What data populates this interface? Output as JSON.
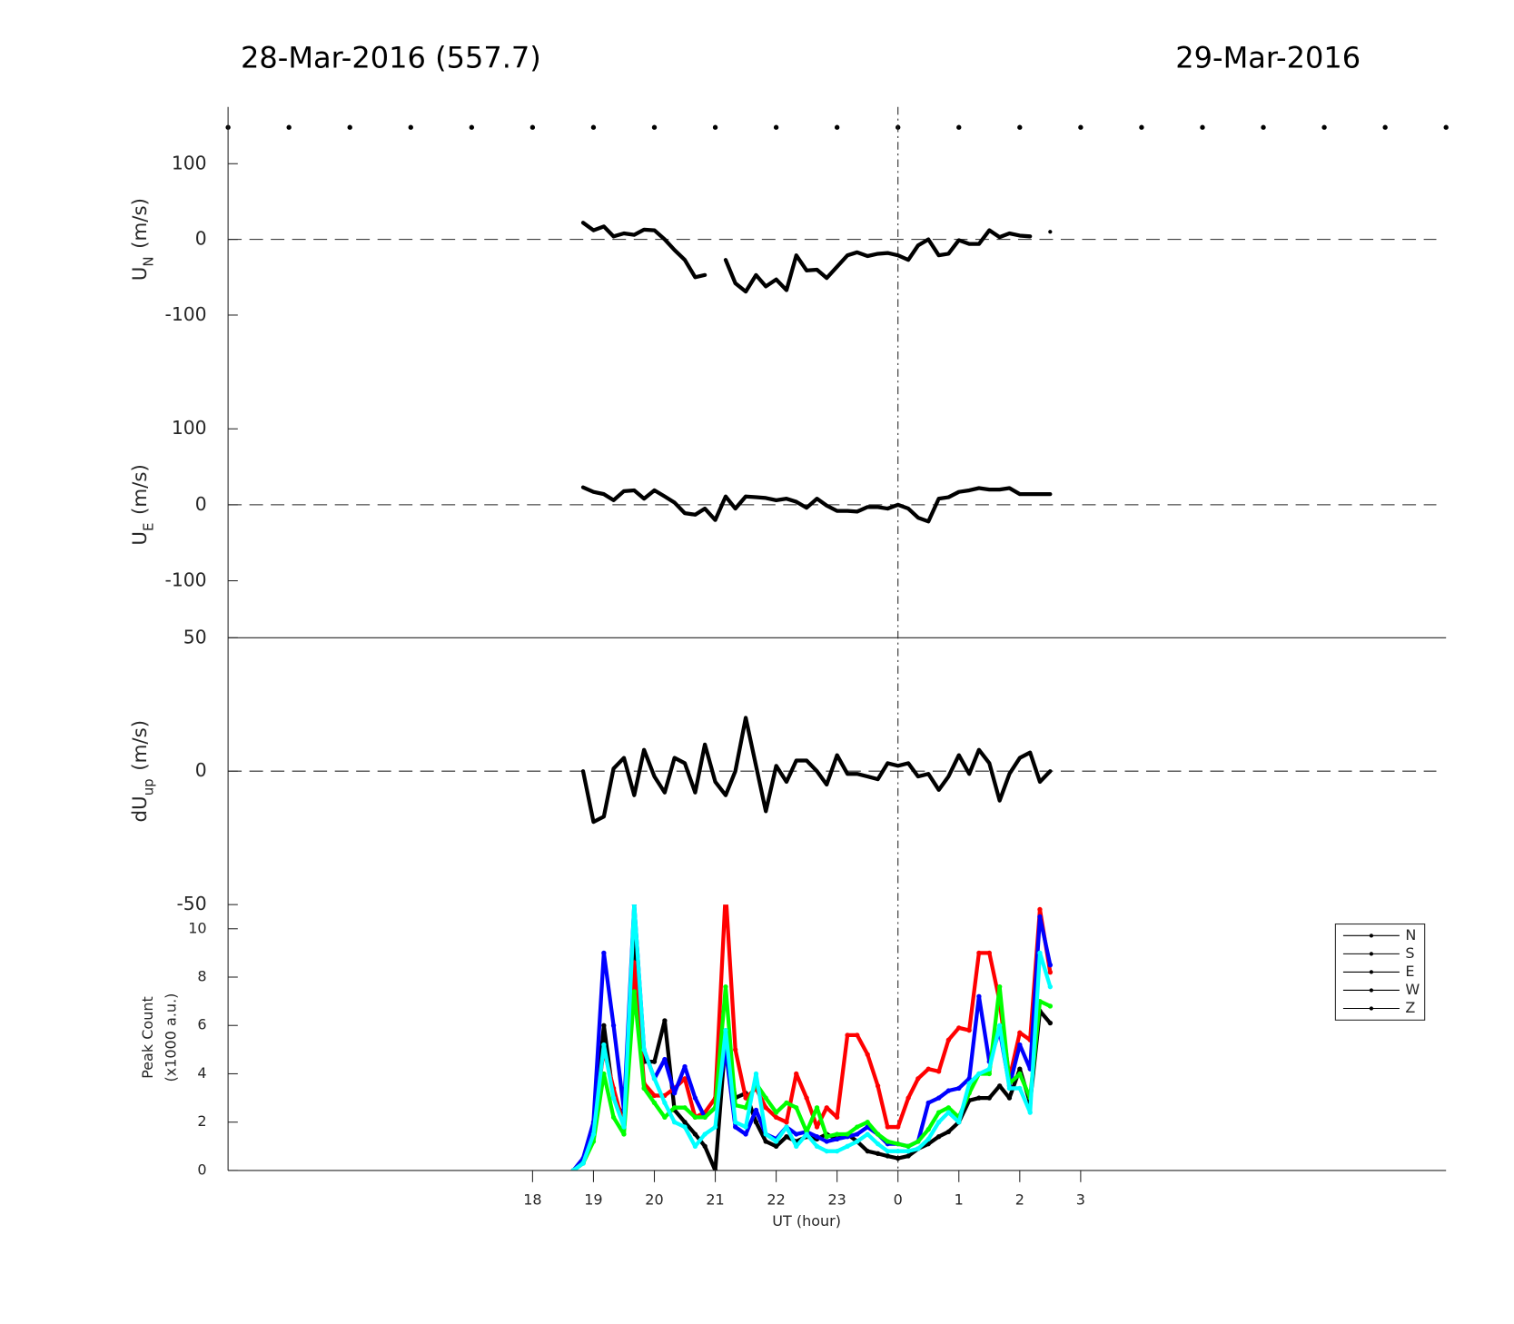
{
  "header": {
    "left": "28-Mar-2016 (557.7)",
    "right": "29-Mar-2016"
  },
  "chart_data": [
    {
      "type": "line",
      "ylabel": {
        "text": "U",
        "sub": "N",
        "unit": "(m/s)"
      },
      "ylim": [
        -175,
        175
      ],
      "yticks": [
        -100,
        0,
        100
      ],
      "color": "#000000",
      "x": [
        -5.17,
        -5,
        -4.83,
        -4.67,
        -4.5,
        -4.33,
        -4.17,
        -4,
        -3.83,
        -3.67,
        -3.5,
        -3.33,
        -3.17,
        -3,
        -2.83,
        -2.67,
        -2.5,
        -2.33,
        -2.17,
        -2,
        -1.83,
        -1.67,
        -1.5,
        -1.33,
        -1.17,
        -1,
        -0.83,
        -0.67,
        -0.5,
        -0.33,
        -0.17,
        0,
        0.17,
        0.33,
        0.5,
        0.67,
        0.83,
        1,
        1.17,
        1.33,
        1.5,
        1.67,
        1.83,
        2,
        2.17,
        2.33,
        2.5
      ],
      "values": [
        22,
        12,
        17,
        4,
        8,
        6,
        13,
        12,
        0,
        -14,
        -27,
        -50,
        -47,
        null,
        -27,
        -58,
        -69,
        -47,
        -62,
        -53,
        -67,
        -21,
        -41,
        -40,
        -51,
        -36,
        -21,
        -17,
        -22,
        -19,
        -18,
        -21,
        -27,
        -8,
        0,
        -21,
        -19,
        -1,
        -6,
        -6,
        12,
        3,
        8,
        5,
        4,
        null,
        10
      ]
    },
    {
      "type": "line",
      "ylabel": {
        "text": "U",
        "sub": "E",
        "unit": "(m/s)"
      },
      "ylim": [
        -175,
        175
      ],
      "yticks": [
        -100,
        0,
        100
      ],
      "color": "#000000",
      "x": [
        -5.17,
        -5,
        -4.83,
        -4.67,
        -4.5,
        -4.33,
        -4.17,
        -4,
        -3.83,
        -3.67,
        -3.5,
        -3.33,
        -3.17,
        -3,
        -2.83,
        -2.67,
        -2.5,
        -2.33,
        -2.17,
        -2,
        -1.83,
        -1.67,
        -1.5,
        -1.33,
        -1.17,
        -1,
        -0.83,
        -0.67,
        -0.5,
        -0.33,
        -0.17,
        0,
        0.17,
        0.33,
        0.5,
        0.67,
        0.83,
        1,
        1.17,
        1.33,
        1.5,
        1.67,
        1.83,
        2,
        2.17,
        2.33,
        2.5
      ],
      "values": [
        23,
        17,
        14,
        6,
        18,
        19,
        8,
        19,
        11,
        3,
        -11,
        -13,
        -5,
        -20,
        11,
        -5,
        11,
        10,
        9,
        6,
        8,
        4,
        -4,
        8,
        -1,
        -8,
        -8,
        -9,
        -3,
        -3,
        -5,
        0,
        -5,
        -17,
        -22,
        8,
        10,
        17,
        19,
        22,
        20,
        20,
        22,
        14,
        14,
        14,
        14
      ]
    },
    {
      "type": "line",
      "ylabel": {
        "text": "dU",
        "sub": "up",
        "unit": "(m/s)"
      },
      "ylim": [
        -50,
        50
      ],
      "yticks": [
        -50,
        0,
        50
      ],
      "color": "#000000",
      "x": [
        -5.17,
        -5,
        -4.83,
        -4.67,
        -4.5,
        -4.33,
        -4.17,
        -4,
        -3.83,
        -3.67,
        -3.5,
        -3.33,
        -3.17,
        -3,
        -2.83,
        -2.67,
        -2.5,
        -2.33,
        -2.17,
        -2,
        -1.83,
        -1.67,
        -1.5,
        -1.33,
        -1.17,
        -1,
        -0.83,
        -0.67,
        -0.5,
        -0.33,
        -0.17,
        0,
        0.17,
        0.33,
        0.5,
        0.67,
        0.83,
        1,
        1.17,
        1.33,
        1.5,
        1.67,
        1.83,
        2,
        2.17,
        2.33,
        2.5
      ],
      "values": [
        0,
        -19,
        -17,
        1,
        5,
        -9,
        8,
        -2,
        -8,
        5,
        3,
        -8,
        10,
        -4,
        -9,
        0,
        20,
        2,
        -15,
        2,
        -4,
        4,
        4,
        0,
        -5,
        6,
        -1,
        -1,
        -2,
        -3,
        3,
        2,
        3,
        -2,
        -1,
        -7,
        -2,
        6,
        -1,
        8,
        3,
        -11,
        -1,
        5,
        7,
        -4,
        0
      ]
    },
    {
      "type": "line",
      "ylabel": [
        "Peak Count",
        "(x1000 a.u.)"
      ],
      "ylim": [
        0,
        11
      ],
      "yticks": [
        0,
        2,
        4,
        6,
        8,
        10
      ],
      "xlabel": "UT (hour)",
      "xlim": [
        -11,
        9
      ],
      "xticks": [
        {
          "value": -6,
          "label": "18"
        },
        {
          "value": -5,
          "label": "19"
        },
        {
          "value": -4,
          "label": "20"
        },
        {
          "value": -3,
          "label": "21"
        },
        {
          "value": -2,
          "label": "22"
        },
        {
          "value": -1,
          "label": "23"
        },
        0,
        1,
        2,
        3
      ],
      "legend": "right",
      "legend_color": "#000000",
      "x": [
        -5.33,
        -5.17,
        -5,
        -4.83,
        -4.67,
        -4.5,
        -4.33,
        -4.17,
        -4,
        -3.83,
        -3.67,
        -3.5,
        -3.33,
        -3.17,
        -3,
        -2.83,
        -2.67,
        -2.5,
        -2.33,
        -2.17,
        -2,
        -1.83,
        -1.67,
        -1.5,
        -1.33,
        -1.17,
        -1,
        -0.83,
        -0.67,
        -0.5,
        -0.33,
        -0.17,
        0,
        0.17,
        0.33,
        0.5,
        0.67,
        0.83,
        1,
        1.17,
        1.33,
        1.5,
        1.67,
        1.83,
        2,
        2.17,
        2.33,
        2.5
      ],
      "series": [
        {
          "name": "N",
          "color": "#000000",
          "values": [
            0,
            0.3,
            1.5,
            6,
            3,
            2.2,
            10,
            4.5,
            4.5,
            6.2,
            2.5,
            2,
            1.5,
            1,
            0,
            5.5,
            3,
            3.2,
            2,
            1.2,
            1,
            1.4,
            1.2,
            1.4,
            1.3,
            1.5,
            1.3,
            1.5,
            1.2,
            0.8,
            0.7,
            0.6,
            0.5,
            0.6,
            0.9,
            1.1,
            1.4,
            1.6,
            2,
            2.9,
            3,
            3,
            3.5,
            3,
            4.2,
            2.8,
            6.6,
            6.1
          ]
        },
        {
          "name": "S",
          "color": "#ff0000",
          "values": [
            0,
            0.4,
            1.8,
            5,
            3.4,
            1.8,
            8.6,
            3.6,
            3.1,
            3.1,
            3.4,
            3.8,
            2.2,
            2.4,
            3,
            11.5,
            5,
            3,
            3.4,
            2.6,
            2.2,
            2,
            4,
            3,
            1.8,
            2.6,
            2.2,
            5.6,
            5.6,
            4.8,
            3.5,
            1.8,
            1.8,
            3,
            3.8,
            4.2,
            4.1,
            5.4,
            5.9,
            5.8,
            9,
            9,
            7,
            3.8,
            5.7,
            5.4,
            10.8,
            8.2
          ]
        },
        {
          "name": "E",
          "color": "#0000ff",
          "values": [
            0,
            0.5,
            2,
            9,
            6,
            2.5,
            11,
            5,
            3.8,
            4.6,
            3.2,
            4.3,
            3,
            2.2,
            2.6,
            5,
            1.8,
            1.5,
            2.5,
            1.5,
            1.3,
            1.8,
            1.5,
            1.6,
            1.4,
            1.2,
            1.3,
            1.4,
            1.5,
            1.8,
            1.5,
            1.1,
            1.1,
            1,
            1.2,
            2.8,
            3,
            3.3,
            3.4,
            3.8,
            7.2,
            4.5,
            5.8,
            3.5,
            5.2,
            4.2,
            10.5,
            8.5
          ]
        },
        {
          "name": "W",
          "color": "#00ff00",
          "values": [
            0,
            0.3,
            1.2,
            4,
            2.2,
            1.5,
            7.4,
            3.4,
            2.8,
            2.2,
            2.6,
            2.6,
            2.2,
            2.2,
            2.6,
            7.6,
            2.7,
            2.6,
            3.6,
            3,
            2.4,
            2.8,
            2.6,
            1.6,
            2.6,
            1.4,
            1.5,
            1.5,
            1.8,
            2,
            1.5,
            1.2,
            1.1,
            1,
            1.2,
            1.7,
            2.4,
            2.6,
            2.2,
            3.2,
            4,
            4,
            7.6,
            3.6,
            4,
            3,
            7,
            6.8
          ]
        },
        {
          "name": "Z",
          "color": "#00ffff",
          "values": [
            0,
            0.3,
            1.5,
            5.2,
            3,
            1.8,
            11,
            5,
            3.8,
            2.8,
            2,
            1.8,
            1,
            1.5,
            1.8,
            5.8,
            2,
            1.8,
            4,
            1.5,
            1.2,
            1.8,
            1,
            1.5,
            1,
            0.8,
            0.8,
            1,
            1.2,
            1.5,
            1.1,
            0.8,
            0.8,
            0.8,
            0.9,
            1.3,
            2,
            2.4,
            2,
            3.6,
            4,
            4.2,
            6,
            3.4,
            3.4,
            2.4,
            9,
            7.6
          ]
        }
      ]
    }
  ]
}
